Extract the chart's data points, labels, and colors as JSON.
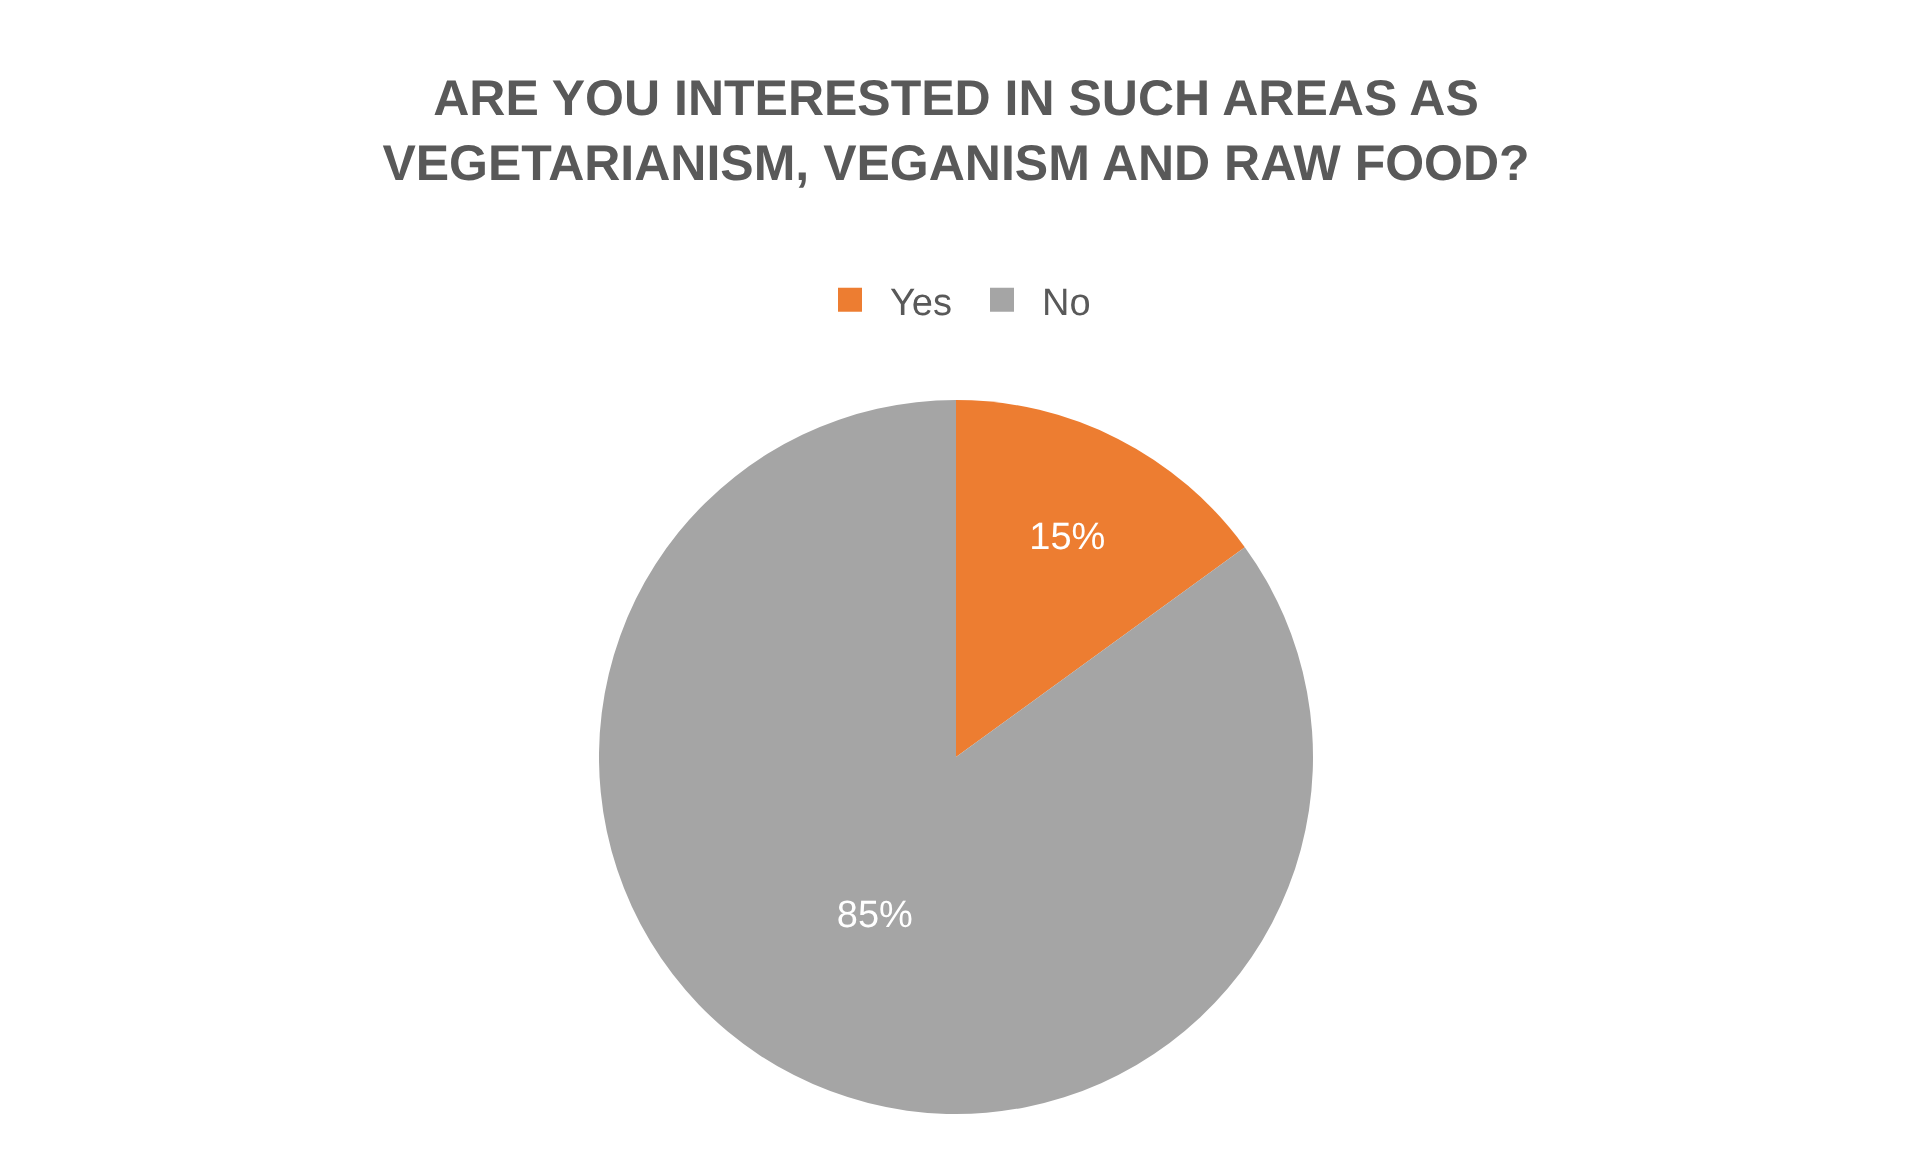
{
  "chart_data": {
    "type": "pie",
    "title": "ARE YOU INTERESTED IN SUCH AREAS AS\nVEGETARIANISM, VEGANISM AND RAW FOOD?",
    "categories": [
      "Yes",
      "No"
    ],
    "values": [
      15,
      85
    ],
    "colors": [
      "#ed7d31",
      "#a5a5a5"
    ],
    "value_labels": [
      "15%",
      "85%"
    ],
    "legend": "top"
  }
}
